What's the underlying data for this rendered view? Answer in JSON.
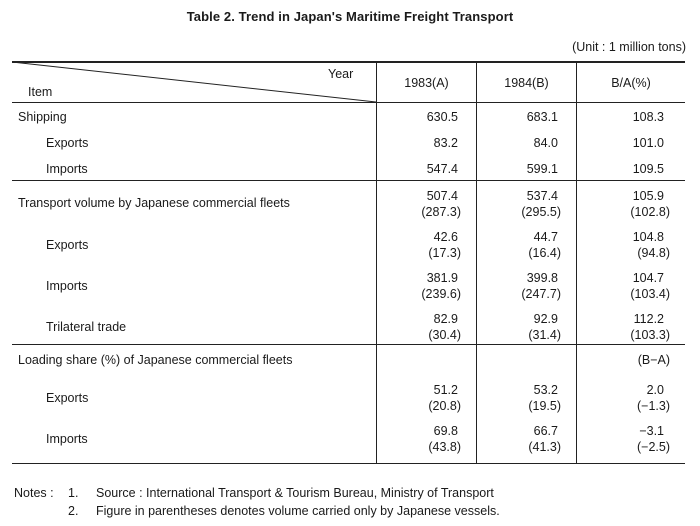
{
  "table": {
    "title": "Table 2. Trend in Japan's Maritime Freight Transport",
    "unit": "(Unit : 1 million tons)",
    "header": {
      "year_label": "Year",
      "item_label": "Item",
      "col1": "1983(A)",
      "col2": "1984(B)",
      "col3": "B/A(%)"
    },
    "sections": [
      {
        "rows": [
          {
            "label": "Shipping",
            "a": "630.5",
            "b": "683.1",
            "ratio": "108.3"
          },
          {
            "label": "Exports",
            "a": "83.2",
            "b": "84.0",
            "ratio": "101.0"
          },
          {
            "label": "Imports",
            "a": "547.4",
            "b": "599.1",
            "ratio": "109.5"
          }
        ]
      },
      {
        "rows": [
          {
            "label": "Transport volume by Japanese commercial fleets",
            "a": "507.4",
            "a2": "(287.3)",
            "b": "537.4",
            "b2": "(295.5)",
            "ratio": "105.9",
            "ratio2": "(102.8)"
          },
          {
            "label": "Exports",
            "a": "42.6",
            "a2": "(17.3)",
            "b": "44.7",
            "b2": "(16.4)",
            "ratio": "104.8",
            "ratio2": "(94.8)"
          },
          {
            "label": "Imports",
            "a": "381.9",
            "a2": "(239.6)",
            "b": "399.8",
            "b2": "(247.7)",
            "ratio": "104.7",
            "ratio2": "(103.4)"
          },
          {
            "label": "Trilateral trade",
            "a": "82.9",
            "a2": "(30.4)",
            "b": "92.9",
            "b2": "(31.4)",
            "ratio": "112.2",
            "ratio2": "(103.3)"
          }
        ]
      },
      {
        "rows": [
          {
            "label": "Loading share (%) of Japanese commercial fleets",
            "ratio": "(B−A)"
          },
          {
            "label": "Exports",
            "a": "51.2",
            "a2": "(20.8)",
            "b": "53.2",
            "b2": "(19.5)",
            "ratio": "2.0",
            "ratio2": "(−1.3)"
          },
          {
            "label": "Imports",
            "a": "69.8",
            "a2": "(43.8)",
            "b": "66.7",
            "b2": "(41.3)",
            "ratio": "−3.1",
            "ratio2": "(−2.5)"
          }
        ]
      }
    ]
  },
  "notes": {
    "label": "Notes :",
    "items": [
      {
        "num": "1.",
        "text": "Source : International Transport & Tourism Bureau, Ministry of Transport"
      },
      {
        "num": "2.",
        "text": "Figure in parentheses denotes volume carried only by Japanese vessels."
      }
    ]
  }
}
